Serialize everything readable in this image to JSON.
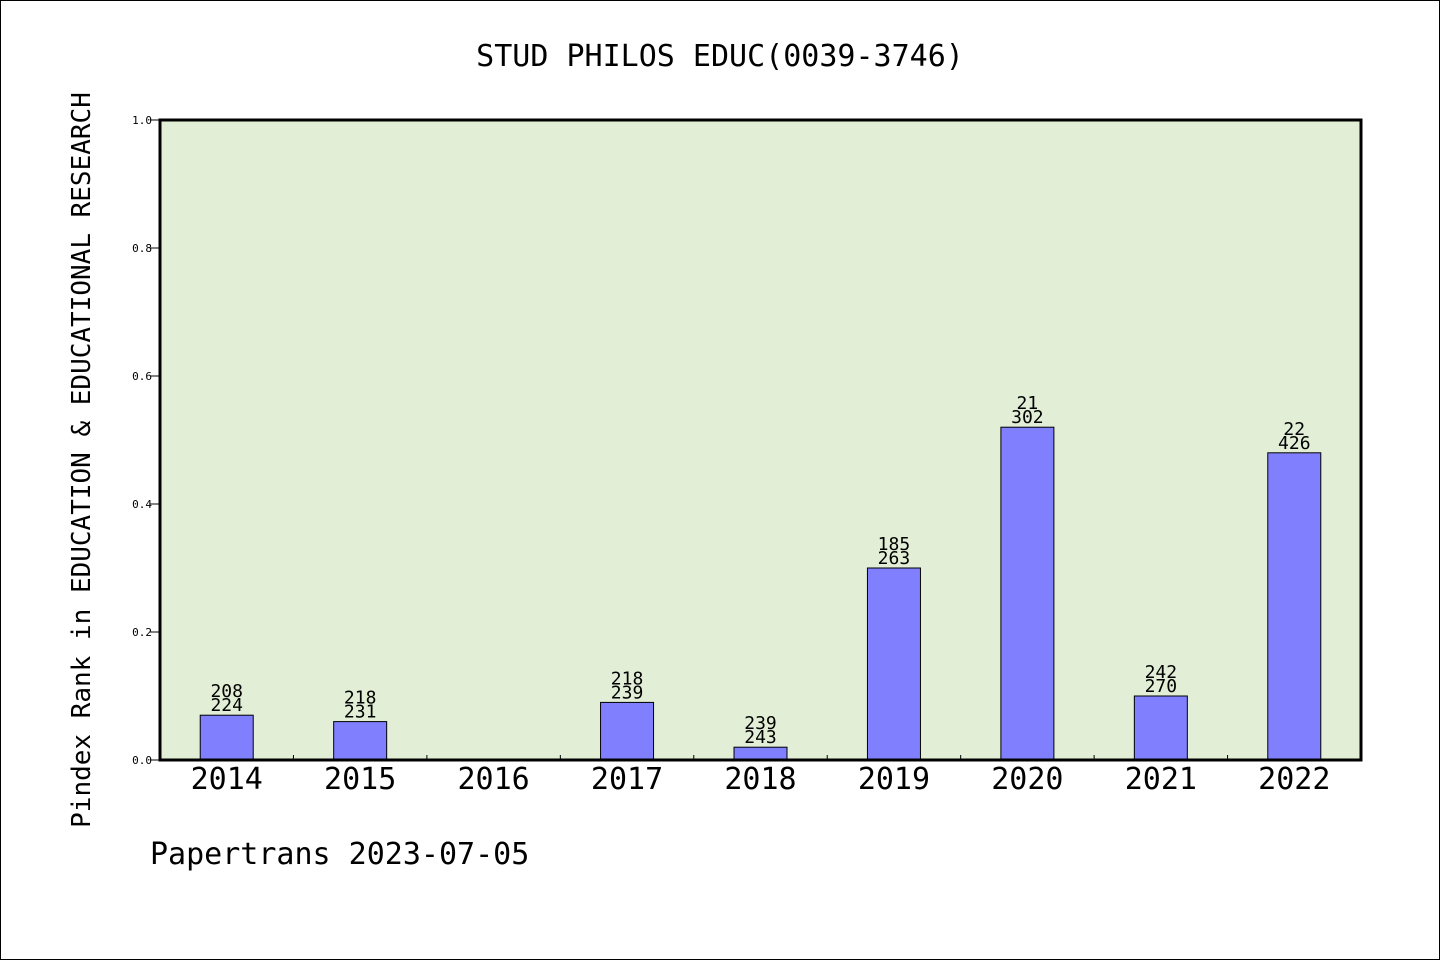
{
  "chart_data": {
    "type": "bar",
    "title": "STUD PHILOS EDUC(0039-3746)",
    "xlabel": "",
    "ylabel": "Pindex Rank in EDUCATION & EDUCATIONAL RESEARCH",
    "categories": [
      "2014",
      "2015",
      "2016",
      "2017",
      "2018",
      "2019",
      "2020",
      "2021",
      "2022"
    ],
    "values": [
      0.07,
      0.06,
      null,
      0.09,
      0.02,
      0.3,
      0.52,
      0.1,
      0.48
    ],
    "data_labels": [
      [
        "208",
        "224"
      ],
      [
        "218",
        "231"
      ],
      null,
      [
        "218",
        "239"
      ],
      [
        "239",
        "243"
      ],
      [
        "185",
        "263"
      ],
      [
        "21",
        "302"
      ],
      [
        "242",
        "270"
      ],
      [
        "22",
        "426"
      ]
    ],
    "yticks": [
      "0.0",
      "0.2",
      "0.4",
      "0.6",
      "0.8",
      "1.0"
    ],
    "ylim": [
      0,
      1.0
    ],
    "grid": false,
    "legend": "none",
    "colors": {
      "plot_background": "#e2efd6",
      "bar_fill": "#8080ff",
      "bar_stroke": "#000000",
      "axis": "#000000"
    }
  },
  "footer": {
    "text": "Papertrans 2023-07-05"
  }
}
